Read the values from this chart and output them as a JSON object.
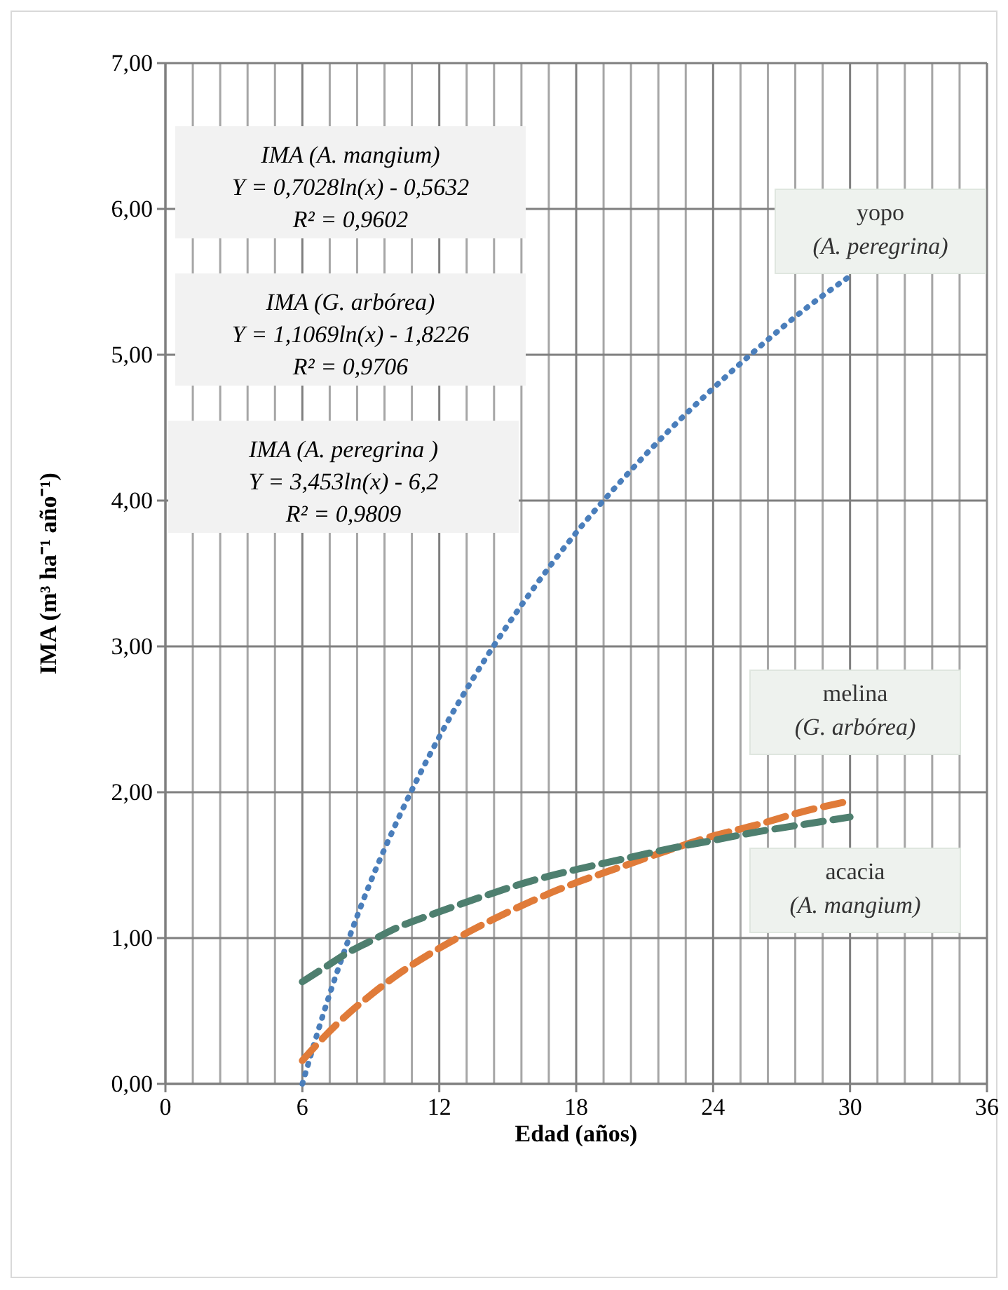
{
  "chart_data": {
    "type": "line",
    "xlabel": "Edad (años)",
    "ylabel": "IMA (m³ ha⁻¹ año⁻¹)",
    "x": [
      6,
      7,
      8,
      9,
      10,
      12,
      14,
      16,
      18,
      20,
      22,
      24,
      26,
      28,
      30
    ],
    "series": [
      {
        "name": "yopo (A. peregrina)",
        "color": "#4a7ebb",
        "line_style": "dotted",
        "values": [
          0.0,
          0.52,
          0.98,
          1.39,
          1.75,
          2.38,
          2.91,
          3.37,
          3.78,
          4.14,
          4.47,
          4.77,
          5.05,
          5.31,
          5.54
        ]
      },
      {
        "name": "melina (G. arbórea)",
        "color": "#e07b39",
        "line_style": "dashed",
        "values": [
          0.16,
          0.33,
          0.48,
          0.61,
          0.73,
          0.93,
          1.1,
          1.25,
          1.38,
          1.49,
          1.6,
          1.7,
          1.78,
          1.87,
          1.94
        ]
      },
      {
        "name": "acacia (A. mangium)",
        "color": "#4e7f6f",
        "line_style": "dashed",
        "values": [
          0.7,
          0.8,
          0.9,
          0.98,
          1.06,
          1.18,
          1.29,
          1.39,
          1.47,
          1.54,
          1.61,
          1.67,
          1.73,
          1.78,
          1.83
        ]
      }
    ],
    "xlim": [
      0,
      36
    ],
    "xticks": [
      0,
      {
        "value": 1.2,
        "label": null
      },
      {
        "value": 2.4,
        "label": null
      },
      {
        "value": 3.6,
        "label": null
      },
      {
        "value": 4.8,
        "label": null
      },
      6,
      {
        "value": 7.2,
        "label": null
      },
      {
        "value": 8.4,
        "label": null
      },
      {
        "value": 9.6,
        "label": null
      },
      {
        "value": 10.8,
        "label": null
      },
      12,
      {
        "value": 13.2,
        "label": null
      },
      {
        "value": 14.4,
        "label": null
      },
      {
        "value": 15.6,
        "label": null
      },
      {
        "value": 16.8,
        "label": null
      },
      18,
      {
        "value": 19.2,
        "label": null
      },
      {
        "value": 20.4,
        "label": null
      },
      {
        "value": 21.6,
        "label": null
      },
      {
        "value": 22.8,
        "label": null
      },
      24,
      {
        "value": 25.2,
        "label": null
      },
      {
        "value": 26.4,
        "label": null
      },
      {
        "value": 27.6,
        "label": null
      },
      {
        "value": 28.8,
        "label": null
      },
      30,
      {
        "value": 31.2,
        "label": null
      },
      {
        "value": 32.4,
        "label": null
      },
      {
        "value": 33.6,
        "label": null
      },
      {
        "value": 34.8,
        "label": null
      },
      36
    ],
    "ylim": [
      0,
      7
    ],
    "yticks": [
      {
        "value": 0,
        "label": "0,00"
      },
      {
        "value": 1,
        "label": "1,00"
      },
      {
        "value": 2,
        "label": "2,00"
      },
      {
        "value": 3,
        "label": "3,00"
      },
      {
        "value": 4,
        "label": "4,00"
      },
      {
        "value": 5,
        "label": "5,00"
      },
      {
        "value": 6,
        "label": "6,00"
      },
      {
        "value": 7,
        "label": "7,00"
      }
    ],
    "grid": true,
    "annotations": [
      "IMA (A. mangium)\nY = 0,7028ln(x) - 0,5632\nR² = 0,9602",
      "IMA (G. arbórea)\nY = 1,1069ln(x) - 1,8226\nR² = 0,9706",
      "IMA (A. peregrina )\nY = 3,453ln(x) - 6,2\nR² = 0,9809"
    ]
  }
}
